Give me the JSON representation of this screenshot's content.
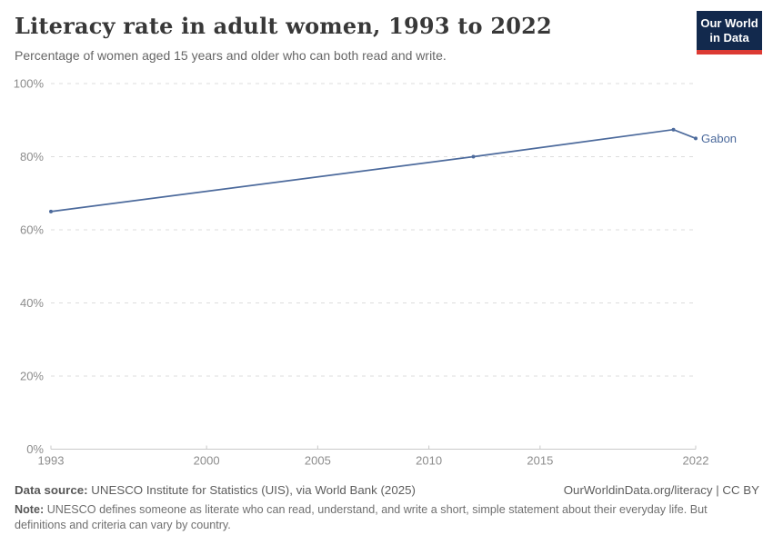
{
  "header": {
    "title": "Literacy rate in adult women, 1993 to 2022",
    "subtitle": "Percentage of women aged 15 years and older who can both read and write."
  },
  "logo": {
    "line1": "Our World",
    "line2": "in Data",
    "bg_color": "#12294d",
    "stripe_color": "#dc3a33"
  },
  "chart_data": {
    "type": "line",
    "title": "Literacy rate in adult women, 1993 to 2022",
    "xlabel": "",
    "ylabel": "",
    "xlim": [
      1993,
      2022
    ],
    "ylim": [
      0,
      100
    ],
    "grid": true,
    "x_ticks": [
      1993,
      2000,
      2005,
      2010,
      2015,
      2022
    ],
    "y_ticks": [
      {
        "value": 0,
        "label": "0%"
      },
      {
        "value": 20,
        "label": "20%"
      },
      {
        "value": 40,
        "label": "40%"
      },
      {
        "value": 60,
        "label": "60%"
      },
      {
        "value": 80,
        "label": "80%"
      },
      {
        "value": 100,
        "label": "100%"
      }
    ],
    "series": [
      {
        "name": "Gabon",
        "color": "#4c6a9c",
        "points": [
          {
            "year": 1993,
            "value": 65
          },
          {
            "year": 2012,
            "value": 80
          },
          {
            "year": 2021,
            "value": 87.4
          },
          {
            "year": 2022,
            "value": 85
          }
        ]
      }
    ],
    "legend_position": "end-of-line-label"
  },
  "footer": {
    "source_label": "Data source:",
    "source_text": "UNESCO Institute for Statistics (UIS), via World Bank (2025)",
    "attribution": "OurWorldinData.org/literacy | CC BY",
    "note_label": "Note:",
    "note_text": "UNESCO defines someone as literate who can read, understand, and write a short, simple statement about their everyday life. But definitions and criteria can vary by country."
  }
}
